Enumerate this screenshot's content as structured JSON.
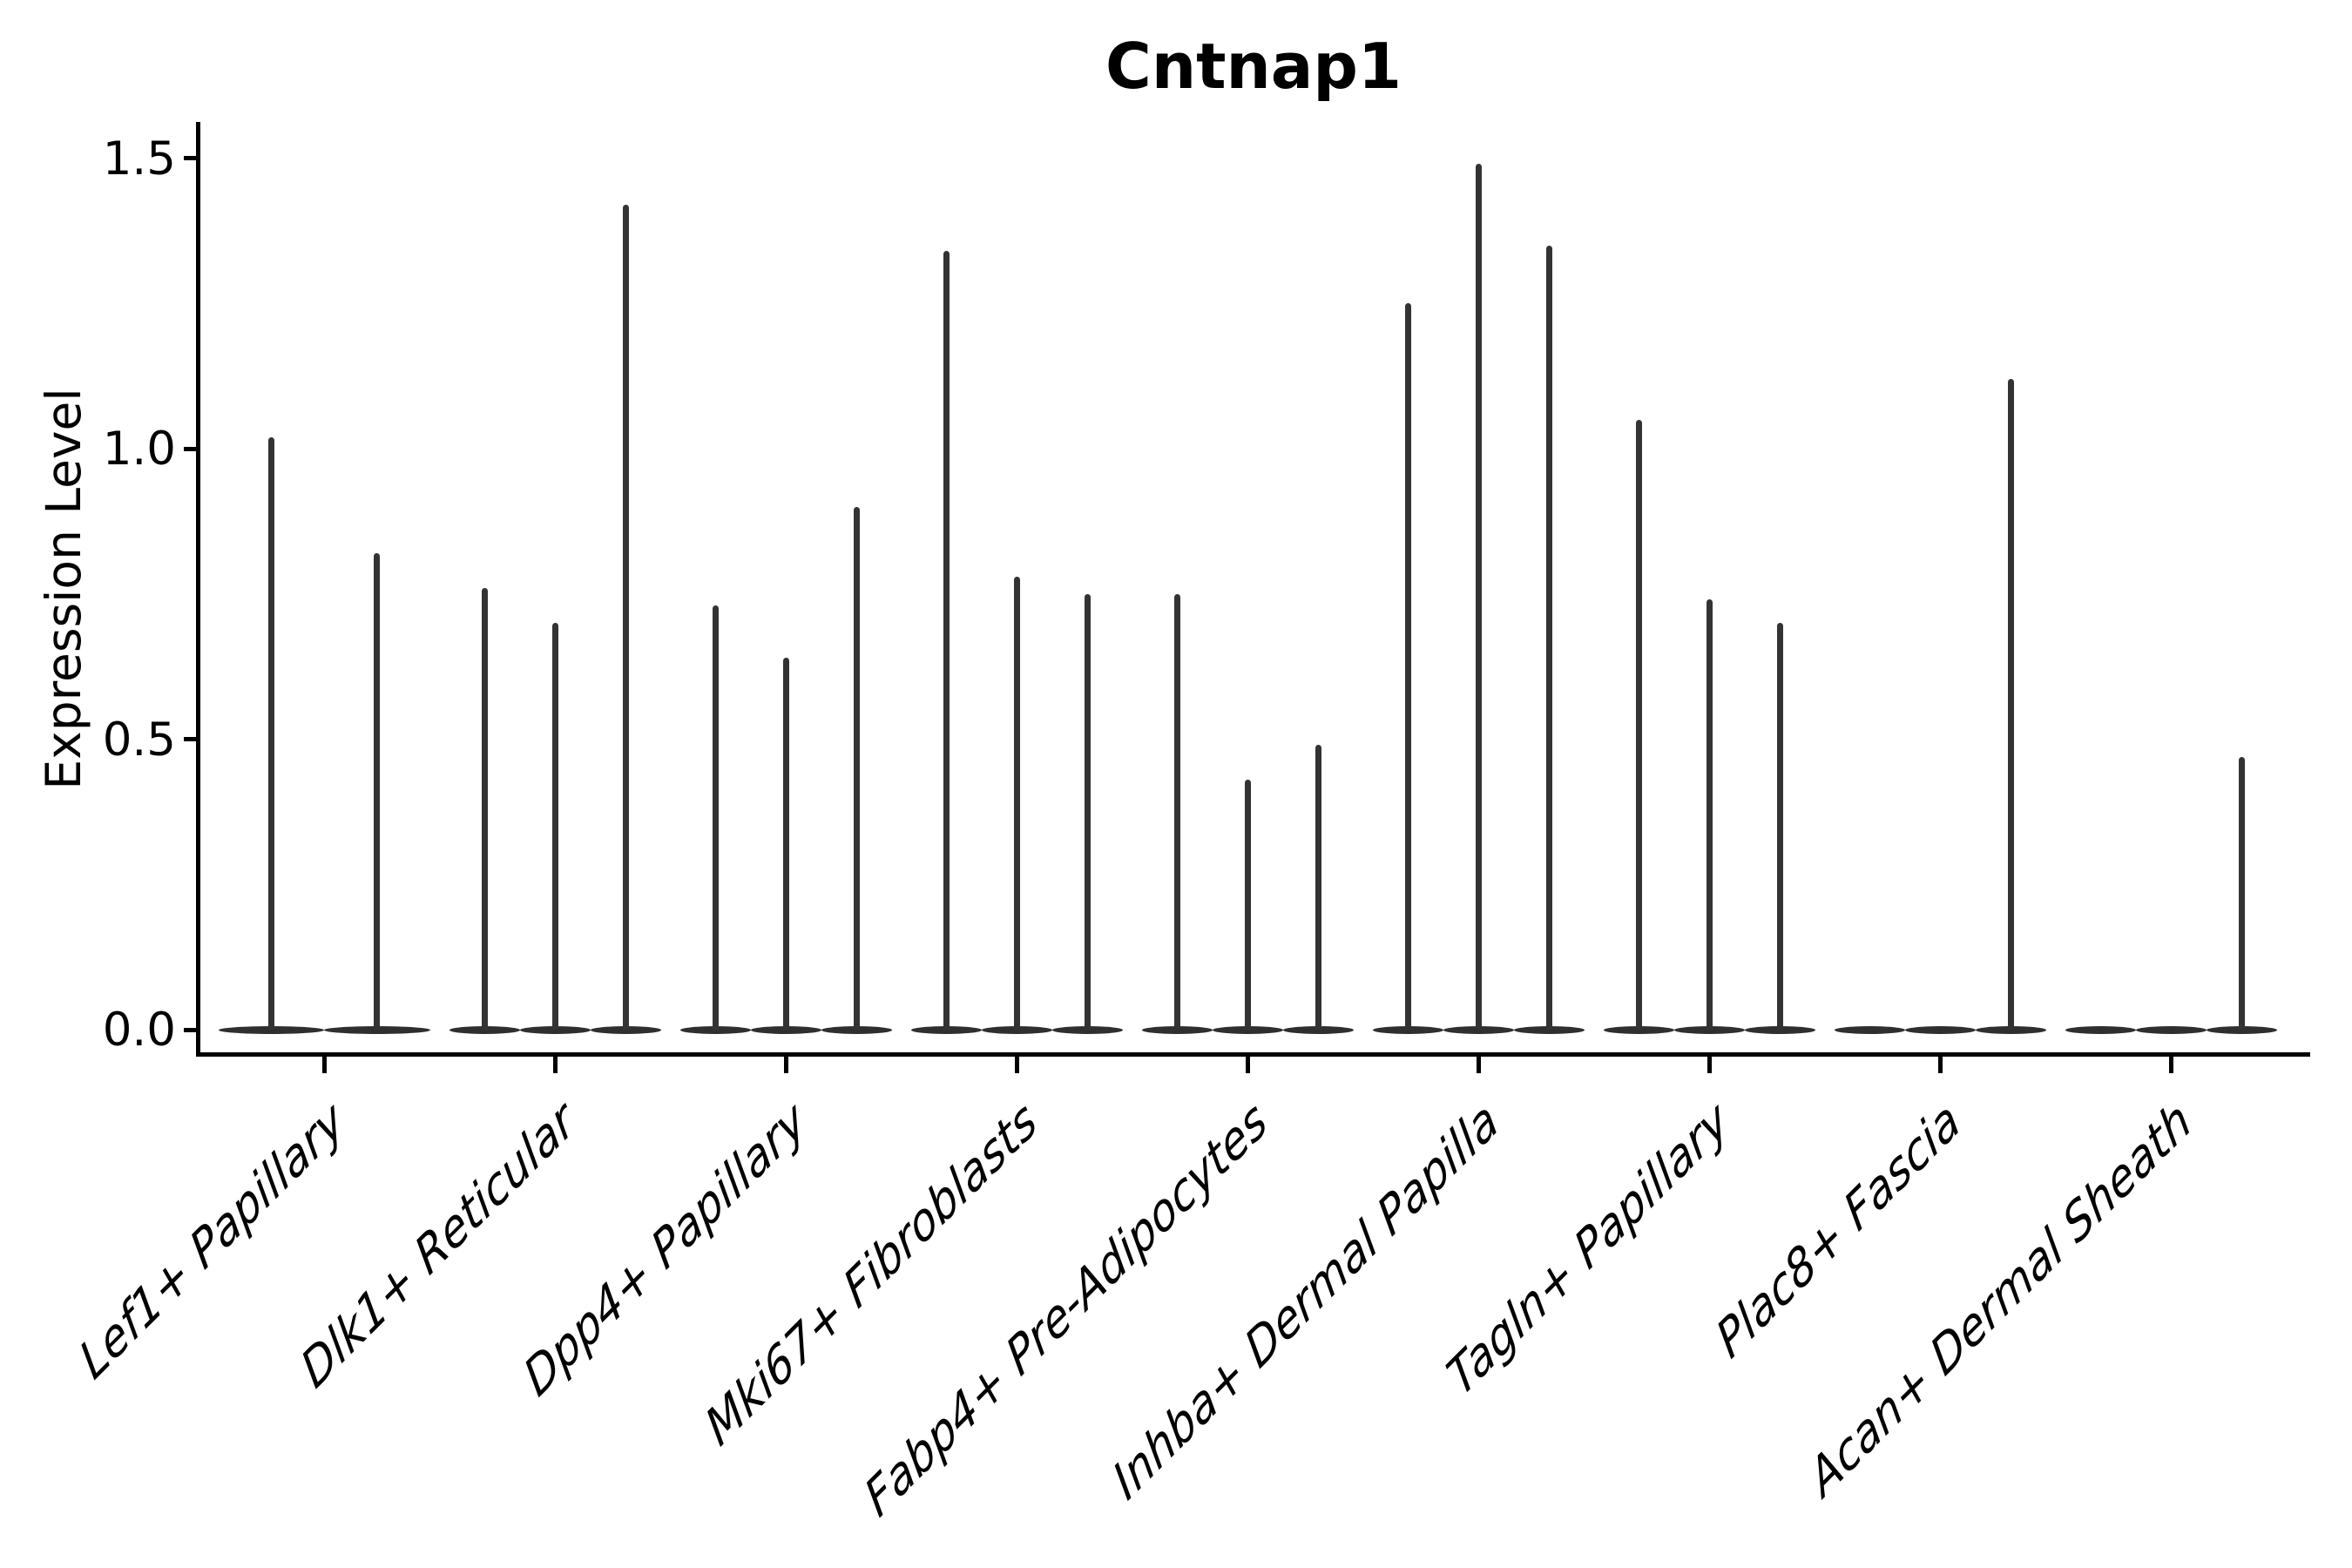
{
  "chart_data": {
    "type": "violin",
    "title": "Cntnap1",
    "ylabel": "Expression Level",
    "xlabel": "",
    "ylim": [
      0,
      1.56
    ],
    "grid": false,
    "legend": "none",
    "yticks": [
      {
        "value": 0.0,
        "label": "0.0"
      },
      {
        "value": 0.5,
        "label": "0.5"
      },
      {
        "value": 1.0,
        "label": "1.0"
      },
      {
        "value": 1.5,
        "label": "1.5"
      }
    ],
    "groups": [
      {
        "label": "Lef1+ Papillary",
        "violins": [
          1.02,
          0.82
        ]
      },
      {
        "label": "Dlk1+ Reticular",
        "violins": [
          0.76,
          0.7,
          1.42
        ]
      },
      {
        "label": "Dpp4+ Papillary",
        "violins": [
          0.73,
          0.64,
          0.9
        ]
      },
      {
        "label": "Mki67+ Fibroblasts",
        "violins": [
          1.34,
          0.78,
          0.75
        ]
      },
      {
        "label": "Fabp4+ Pre-Adipocytes",
        "violins": [
          0.75,
          0.43,
          0.49
        ]
      },
      {
        "label": "Inhba+ Dermal Papilla",
        "violins": [
          1.25,
          1.49,
          1.35
        ]
      },
      {
        "label": "Tagln+ Papillary",
        "violins": [
          1.05,
          0.74,
          0.7
        ]
      },
      {
        "label": "Plac8+ Fascia",
        "violins": [
          0,
          0,
          1.12
        ]
      },
      {
        "label": "Acan+ Dermal Sheath",
        "violins": [
          0,
          0,
          0.47
        ]
      }
    ],
    "colors": {
      "violin": "#333333",
      "axis": "#000000",
      "text": "#000000",
      "background": "#ffffff"
    }
  }
}
